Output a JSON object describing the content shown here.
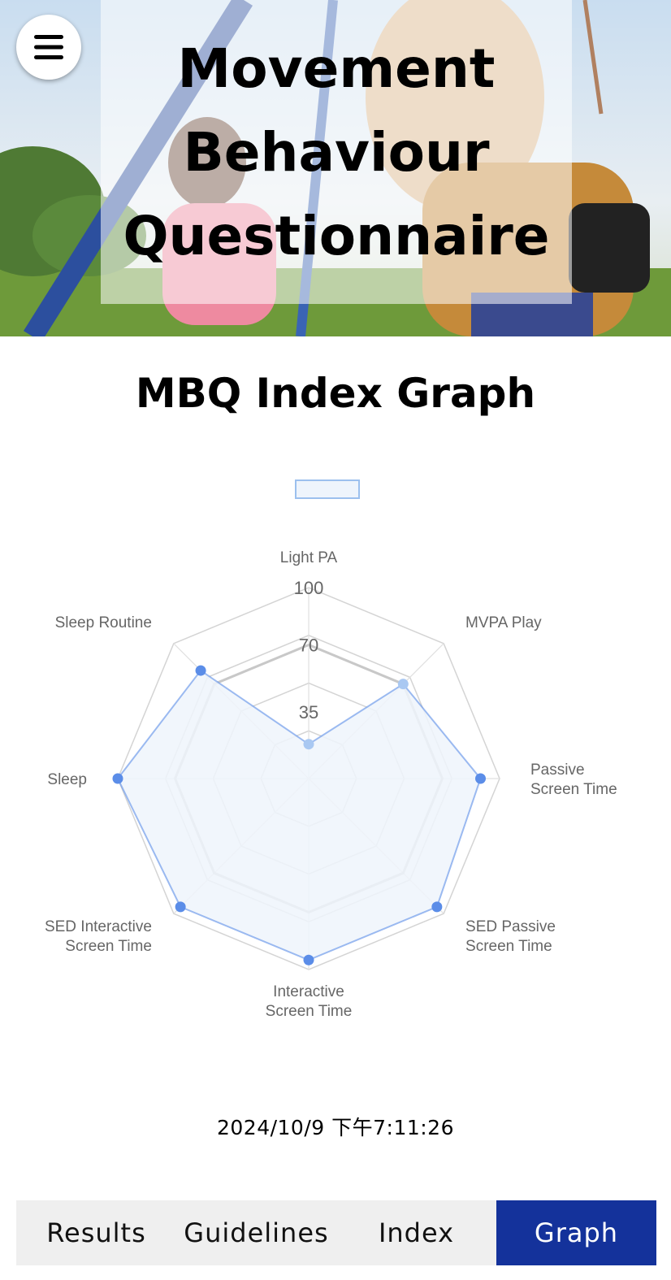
{
  "header": {
    "title": "Movement Behaviour Questionnaire",
    "menu_icon": "hamburger-menu-icon"
  },
  "main": {
    "section_title": "MBQ Index Graph",
    "timestamp": "2024/10/9 下午7:11:26"
  },
  "chart_data": {
    "type": "radar",
    "categories": [
      "Light PA",
      "MVPA Play",
      "Passive Screen Time",
      "SED Passive Screen Time",
      "Interactive Screen Time",
      "SED Interactive Screen Time",
      "Sleep",
      "Sleep Routine"
    ],
    "category_lines": [
      [
        "Light PA"
      ],
      [
        "MVPA Play"
      ],
      [
        "Passive",
        "Screen Time"
      ],
      [
        "SED Passive",
        "Screen Time"
      ],
      [
        "Interactive",
        "Screen Time"
      ],
      [
        "SED Interactive",
        "Screen Time"
      ],
      [
        "Sleep"
      ],
      [
        "Sleep Routine"
      ]
    ],
    "series": [
      {
        "values": [
          18,
          70,
          90,
          95,
          95,
          95,
          100,
          80
        ],
        "color": "#5b8de8",
        "fill": "#eef4fc"
      }
    ],
    "reference_values": [
      70,
      70,
      70,
      70,
      70,
      70,
      70,
      70
    ],
    "ticks": [
      35,
      70,
      100
    ],
    "rmax": 100,
    "legend": "top",
    "grid": true
  },
  "nav": {
    "tabs": [
      {
        "label": "Results",
        "active": false
      },
      {
        "label": "Guidelines",
        "active": false
      },
      {
        "label": "Index",
        "active": false
      },
      {
        "label": "Graph",
        "active": true
      }
    ]
  },
  "colors": {
    "accent": "#14329b",
    "series": "#5b8de8"
  }
}
